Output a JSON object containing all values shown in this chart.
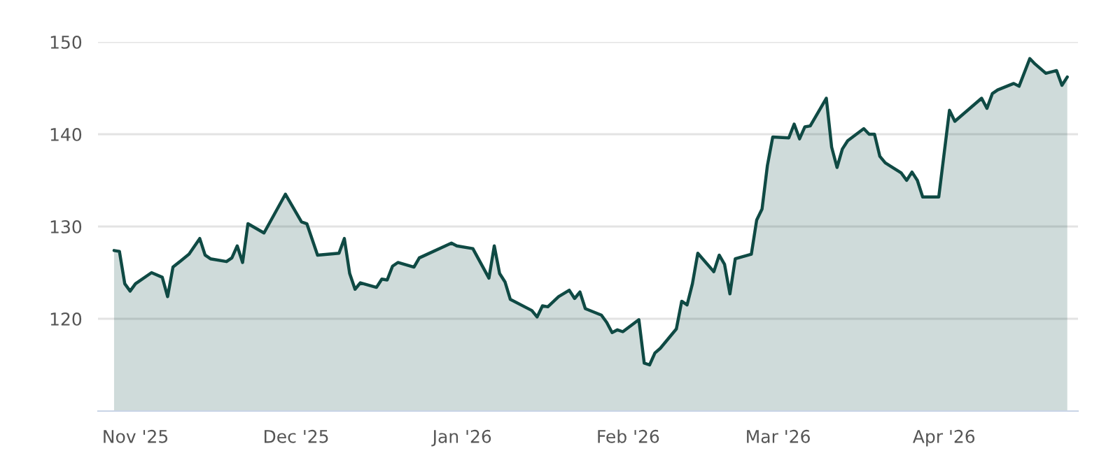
{
  "chart_data": {
    "type": "area",
    "ylim": [
      110,
      150
    ],
    "yticks": [
      120,
      130,
      140,
      150
    ],
    "xlim": [
      "2025-10-25",
      "2026-04-26"
    ],
    "xticks": [
      {
        "value": "2025-11-01",
        "label": "Nov '25"
      },
      {
        "value": "2025-12-01",
        "label": "Dec '25"
      },
      {
        "value": "2026-01-01",
        "label": "Jan '26"
      },
      {
        "value": "2026-02-01",
        "label": "Feb '26"
      },
      {
        "value": "2026-03-01",
        "label": "Mar '26"
      },
      {
        "value": "2026-04-01",
        "label": "Apr '26"
      }
    ],
    "grid": "y",
    "legend": false,
    "series": [
      {
        "color": "#0f4a44",
        "x": [
          "2025-10-28",
          "2025-10-29",
          "2025-10-30",
          "2025-10-31",
          "2025-11-01",
          "2025-11-04",
          "2025-11-06",
          "2025-11-07",
          "2025-11-08",
          "2025-11-11",
          "2025-11-13",
          "2025-11-14",
          "2025-11-15",
          "2025-11-18",
          "2025-11-19",
          "2025-11-20",
          "2025-11-21",
          "2025-11-22",
          "2025-11-25",
          "2025-11-27",
          "2025-11-29",
          "2025-12-02",
          "2025-12-03",
          "2025-12-05",
          "2025-12-09",
          "2025-12-10",
          "2025-12-11",
          "2025-12-12",
          "2025-12-13",
          "2025-12-16",
          "2025-12-17",
          "2025-12-18",
          "2025-12-19",
          "2025-12-20",
          "2025-12-23",
          "2025-12-24",
          "2025-12-30",
          "2025-12-31",
          "2026-01-03",
          "2026-01-06",
          "2026-01-07",
          "2026-01-08",
          "2026-01-09",
          "2026-01-10",
          "2026-01-14",
          "2026-01-15",
          "2026-01-16",
          "2026-01-17",
          "2026-01-19",
          "2026-01-21",
          "2026-01-22",
          "2026-01-23",
          "2026-01-24",
          "2026-01-27",
          "2026-01-28",
          "2026-01-29",
          "2026-01-30",
          "2026-01-31",
          "2026-02-03",
          "2026-02-04",
          "2026-02-05",
          "2026-02-06",
          "2026-02-07",
          "2026-02-10",
          "2026-02-11",
          "2026-02-12",
          "2026-02-13",
          "2026-02-14",
          "2026-02-17",
          "2026-02-18",
          "2026-02-19",
          "2026-02-20",
          "2026-02-21",
          "2026-02-24",
          "2026-02-25",
          "2026-02-26",
          "2026-02-27",
          "2026-02-28",
          "2026-03-03",
          "2026-03-04",
          "2026-03-05",
          "2026-03-06",
          "2026-03-07",
          "2026-03-10",
          "2026-03-11",
          "2026-03-12",
          "2026-03-13",
          "2026-03-14",
          "2026-03-17",
          "2026-03-18",
          "2026-03-19",
          "2026-03-20",
          "2026-03-21",
          "2026-03-24",
          "2026-03-25",
          "2026-03-26",
          "2026-03-27",
          "2026-03-28",
          "2026-03-31",
          "2026-04-02",
          "2026-04-03",
          "2026-04-08",
          "2026-04-09",
          "2026-04-10",
          "2026-04-11",
          "2026-04-14",
          "2026-04-15",
          "2026-04-17",
          "2026-04-18",
          "2026-04-20",
          "2026-04-22",
          "2026-04-23",
          "2026-04-24"
        ],
        "values": [
          127.4,
          127.3,
          123.8,
          123.0,
          123.8,
          125.0,
          124.5,
          122.4,
          125.6,
          127.0,
          128.7,
          126.9,
          126.5,
          126.2,
          126.6,
          127.9,
          126.1,
          130.3,
          129.3,
          131.4,
          133.5,
          130.5,
          130.3,
          126.9,
          127.1,
          128.7,
          124.9,
          123.2,
          123.9,
          123.4,
          124.3,
          124.2,
          125.7,
          126.1,
          125.6,
          126.6,
          128.2,
          127.9,
          127.6,
          124.4,
          127.9,
          124.9,
          124.0,
          122.1,
          120.9,
          120.2,
          121.4,
          121.3,
          122.4,
          123.1,
          122.2,
          122.9,
          121.1,
          120.4,
          119.6,
          118.5,
          118.8,
          118.6,
          119.9,
          115.2,
          115.0,
          116.3,
          116.8,
          118.9,
          121.9,
          121.5,
          123.8,
          127.1,
          125.1,
          126.9,
          125.9,
          122.7,
          126.5,
          127.0,
          130.7,
          131.9,
          136.6,
          139.7,
          139.6,
          141.1,
          139.5,
          140.8,
          140.9,
          143.9,
          138.6,
          136.4,
          138.4,
          139.3,
          140.6,
          140.0,
          140.0,
          137.6,
          136.9,
          135.8,
          135.0,
          135.9,
          135.0,
          133.2,
          133.2,
          142.6,
          141.4,
          143.9,
          142.8,
          144.4,
          144.8,
          145.5,
          145.2,
          148.2,
          147.6,
          146.6,
          146.9,
          145.3,
          146.2
        ]
      }
    ]
  }
}
